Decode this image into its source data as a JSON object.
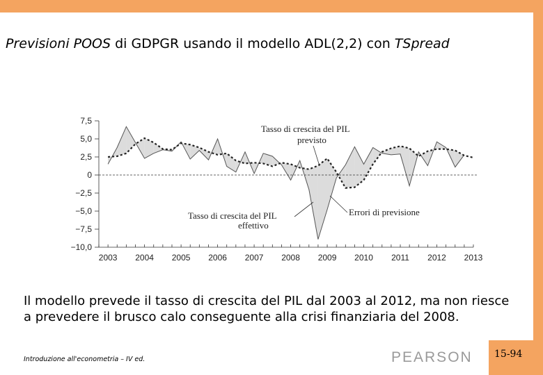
{
  "slide": {
    "title_parts": [
      "Previsioni POOS",
      " di GDPGR usando il modello ADL(2,2) con ",
      "TSpread"
    ],
    "caption": "Il modello prevede il tasso di crescita del PIL dal 2003 al 2012, ma non riesce a prevedere il brusco calo conseguente alla crisi finanziaria del 2008.",
    "footer": "Introduzione all'econometria – IV ed.",
    "logo_text": "PEARSON",
    "page_number": "15-94",
    "colors": {
      "accent_bar": "#f4a460",
      "forecast_error_fill": "#dcdcdc",
      "logo": "#9a9a9a"
    }
  },
  "chart_data": {
    "type": "line",
    "x_tick_labels": [
      "2003",
      "2004",
      "2005",
      "2006",
      "2007",
      "2008",
      "2009",
      "2010",
      "2011",
      "2012",
      "2013"
    ],
    "y_tick_labels": [
      "7,5",
      "5,0",
      "2,5",
      "0",
      "−2,5",
      "−5,0",
      "−7,5",
      "−10,0"
    ],
    "xlim": [
      2002.75,
      2013.0
    ],
    "ylim": [
      -10.0,
      7.5
    ],
    "zero_line": "dashed",
    "grid": false,
    "annotations": {
      "forecast": "Tasso di crescita del PIL previsto",
      "actual": "Tasso di crescita del PIL effettivo",
      "errors": "Errori di previsione"
    },
    "series": [
      {
        "role": "actual",
        "style": "solid",
        "x": [
          2003.0,
          2003.25,
          2003.5,
          2003.75,
          2004.0,
          2004.25,
          2004.5,
          2004.75,
          2005.0,
          2005.25,
          2005.5,
          2005.75,
          2006.0,
          2006.25,
          2006.5,
          2006.75,
          2007.0,
          2007.25,
          2007.5,
          2007.75,
          2008.0,
          2008.25,
          2008.5,
          2008.75,
          2009.0,
          2009.25,
          2009.5,
          2009.75,
          2010.0,
          2010.25,
          2010.5,
          2010.75,
          2011.0,
          2011.25,
          2011.5,
          2011.75,
          2012.0,
          2012.25,
          2012.5,
          2012.75
        ],
        "y": [
          1.5,
          3.8,
          6.7,
          4.5,
          2.3,
          3.0,
          3.5,
          3.3,
          4.6,
          2.2,
          3.4,
          2.1,
          5.0,
          1.2,
          0.4,
          3.2,
          0.2,
          3.0,
          2.6,
          1.4,
          -0.7,
          2.0,
          -2.0,
          -8.9,
          -4.8,
          -0.4,
          1.4,
          3.9,
          1.5,
          3.8,
          3.0,
          2.8,
          2.9,
          -1.5,
          3.2,
          1.3,
          4.6,
          3.8,
          1.1,
          2.8
        ]
      },
      {
        "role": "forecast",
        "style": "dashed",
        "x": [
          2003.0,
          2003.25,
          2003.5,
          2003.75,
          2004.0,
          2004.25,
          2004.5,
          2004.75,
          2005.0,
          2005.25,
          2005.5,
          2005.75,
          2006.0,
          2006.25,
          2006.5,
          2006.75,
          2007.0,
          2007.25,
          2007.5,
          2007.75,
          2008.0,
          2008.25,
          2008.5,
          2008.75,
          2009.0,
          2009.25,
          2009.5,
          2009.75,
          2010.0,
          2010.25,
          2010.5,
          2010.75,
          2011.0,
          2011.25,
          2011.5,
          2011.75,
          2012.0,
          2012.25,
          2012.5,
          2012.75,
          2013.0
        ],
        "y": [
          2.5,
          2.6,
          3.0,
          4.3,
          5.1,
          4.5,
          3.6,
          3.5,
          4.4,
          4.2,
          3.8,
          3.2,
          2.8,
          3.0,
          2.0,
          1.6,
          1.7,
          1.6,
          1.2,
          1.7,
          1.5,
          1.0,
          0.8,
          1.3,
          2.3,
          0.4,
          -1.8,
          -1.7,
          -0.7,
          1.5,
          3.2,
          3.7,
          4.0,
          3.7,
          2.6,
          3.3,
          3.6,
          3.6,
          3.4,
          2.7,
          2.4
        ]
      }
    ]
  }
}
